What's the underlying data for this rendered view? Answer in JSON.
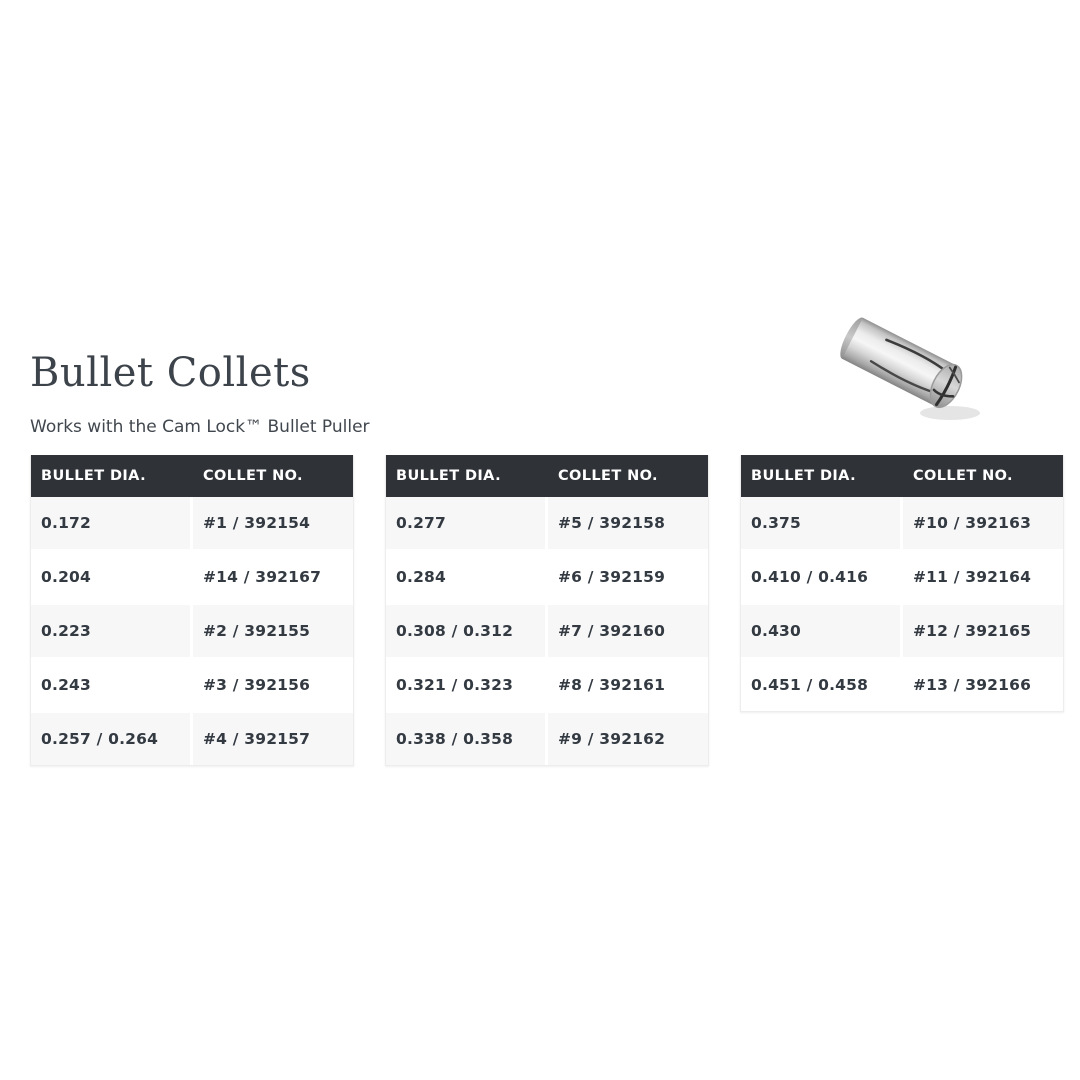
{
  "page": {
    "title": "Bullet Collets",
    "subtitle": "Works with the Cam Lock™ Bullet Puller"
  },
  "product_image": {
    "icon": "bullet-collet-photo",
    "description": "Steel bullet collet"
  },
  "colors": {
    "table_header_bg": "#2f3338",
    "table_header_text": "#ffffff",
    "row_stripe": "#f7f7f8",
    "row_text": "#333a42",
    "title_text": "#3d434a",
    "page_bg": "#ffffff"
  },
  "tables": [
    {
      "headers": [
        "BULLET DIA.",
        "COLLET NO."
      ],
      "rows": [
        [
          "0.172",
          "#1 / 392154"
        ],
        [
          "0.204",
          "#14 / 392167"
        ],
        [
          "0.223",
          "#2 / 392155"
        ],
        [
          "0.243",
          "#3 / 392156"
        ],
        [
          "0.257 / 0.264",
          "#4 / 392157"
        ]
      ]
    },
    {
      "headers": [
        "BULLET DIA.",
        "COLLET NO."
      ],
      "rows": [
        [
          "0.277",
          "#5 / 392158"
        ],
        [
          "0.284",
          "#6 / 392159"
        ],
        [
          "0.308 / 0.312",
          "#7 / 392160"
        ],
        [
          "0.321 / 0.323",
          "#8 / 392161"
        ],
        [
          "0.338 / 0.358",
          "#9 / 392162"
        ]
      ]
    },
    {
      "headers": [
        "BULLET DIA.",
        "COLLET NO."
      ],
      "rows": [
        [
          "0.375",
          "#10 / 392163"
        ],
        [
          "0.410 / 0.416",
          "#11 / 392164"
        ],
        [
          "0.430",
          "#12 / 392165"
        ],
        [
          "0.451 / 0.458",
          "#13 / 392166"
        ]
      ]
    }
  ]
}
